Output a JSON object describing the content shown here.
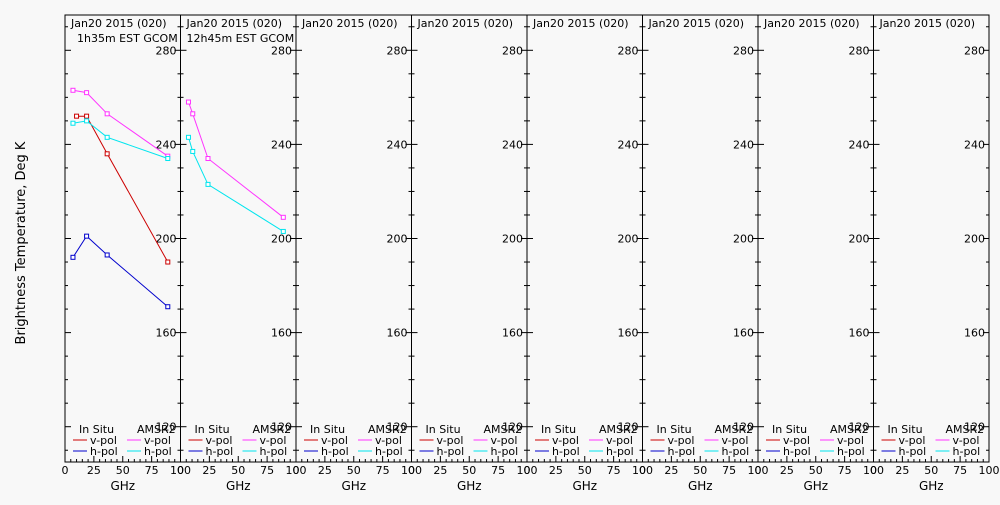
{
  "figure": {
    "ylabel": "Brightness Temperature, Deg K",
    "xlabel": "GHz"
  },
  "colors": {
    "insitu_v": "#cc0000",
    "insitu_h": "#0000cc",
    "amsr2_v": "#ff33ff",
    "amsr2_h": "#00e5ee",
    "background": "#f8f8f8",
    "axes": "#000000"
  },
  "legend": {
    "insitu_header": "In Situ",
    "amsr2_header": "AMSR2",
    "vpol": "v-pol",
    "hpol": "h-pol"
  },
  "chart_data": [
    {
      "type": "line",
      "title": "Jan20 2015 (020)",
      "subtitle": "1h35m EST GCOM",
      "xlabel": "GHz",
      "ylabel": "Brightness Temperature, Deg K",
      "xlim": [
        0,
        100
      ],
      "ylim": [
        105,
        295
      ],
      "xticks": [
        0,
        25,
        50,
        75,
        100
      ],
      "yticks": [
        120,
        160,
        200,
        240,
        280
      ],
      "legend_position": "bottom",
      "series": [
        {
          "name": "In Situ v-pol",
          "x": [
            10,
            18.7,
            36.5,
            89
          ],
          "y": [
            252,
            252,
            236,
            190
          ]
        },
        {
          "name": "In Situ h-pol",
          "x": [
            6.9,
            18.7,
            36.5,
            89
          ],
          "y": [
            192,
            201,
            193,
            171
          ]
        },
        {
          "name": "AMSR2 v-pol",
          "x": [
            6.9,
            18.7,
            36.5,
            89
          ],
          "y": [
            263,
            262,
            253,
            235
          ]
        },
        {
          "name": "AMSR2 h-pol",
          "x": [
            6.9,
            18.7,
            36.5,
            89
          ],
          "y": [
            249,
            250,
            243,
            234
          ]
        }
      ]
    },
    {
      "type": "line",
      "title": "Jan20 2015 (020)",
      "subtitle": "12h45m EST GCOM",
      "xlabel": "GHz",
      "xlim": [
        0,
        100
      ],
      "ylim": [
        105,
        295
      ],
      "xticks": [
        0,
        25,
        50,
        75,
        100
      ],
      "yticks": [
        120,
        160,
        200,
        240,
        280
      ],
      "legend_position": "bottom",
      "series": [
        {
          "name": "In Situ v-pol",
          "x": [],
          "y": []
        },
        {
          "name": "In Situ h-pol",
          "x": [],
          "y": []
        },
        {
          "name": "AMSR2 v-pol",
          "x": [
            6.9,
            10.6,
            23.8,
            89
          ],
          "y": [
            258,
            253,
            234,
            209
          ]
        },
        {
          "name": "AMSR2 h-pol",
          "x": [
            6.9,
            10.6,
            23.8,
            89
          ],
          "y": [
            243,
            237,
            223,
            203
          ]
        }
      ]
    },
    {
      "type": "line",
      "title": "Jan20 2015 (020)",
      "subtitle": "",
      "xlabel": "GHz",
      "xlim": [
        0,
        100
      ],
      "ylim": [
        105,
        295
      ],
      "xticks": [
        0,
        25,
        50,
        75,
        100
      ],
      "yticks": [
        120,
        160,
        200,
        240,
        280
      ],
      "legend_position": "bottom",
      "series": []
    },
    {
      "type": "line",
      "title": "Jan20 2015 (020)",
      "subtitle": "",
      "xlabel": "GHz",
      "xlim": [
        0,
        100
      ],
      "ylim": [
        105,
        295
      ],
      "xticks": [
        0,
        25,
        50,
        75,
        100
      ],
      "yticks": [
        120,
        160,
        200,
        240,
        280
      ],
      "legend_position": "bottom",
      "series": []
    },
    {
      "type": "line",
      "title": "Jan20 2015 (020)",
      "subtitle": "",
      "xlabel": "GHz",
      "xlim": [
        0,
        100
      ],
      "ylim": [
        105,
        295
      ],
      "xticks": [
        0,
        25,
        50,
        75,
        100
      ],
      "yticks": [
        120,
        160,
        200,
        240,
        280
      ],
      "legend_position": "bottom",
      "series": []
    },
    {
      "type": "line",
      "title": "Jan20 2015 (020)",
      "subtitle": "",
      "xlabel": "GHz",
      "xlim": [
        0,
        100
      ],
      "ylim": [
        105,
        295
      ],
      "xticks": [
        0,
        25,
        50,
        75,
        100
      ],
      "yticks": [
        120,
        160,
        200,
        240,
        280
      ],
      "legend_position": "bottom",
      "series": []
    },
    {
      "type": "line",
      "title": "Jan20 2015 (020)",
      "subtitle": "",
      "xlabel": "GHz",
      "xlim": [
        0,
        100
      ],
      "ylim": [
        105,
        295
      ],
      "xticks": [
        0,
        25,
        50,
        75,
        100
      ],
      "yticks": [
        120,
        160,
        200,
        240,
        280
      ],
      "legend_position": "bottom",
      "series": []
    },
    {
      "type": "line",
      "title": "Jan20 2015 (020)",
      "subtitle": "",
      "xlabel": "GHz",
      "xlim": [
        0,
        100
      ],
      "ylim": [
        105,
        295
      ],
      "xticks": [
        0,
        25,
        50,
        75,
        100
      ],
      "yticks": [
        120,
        160,
        200,
        240,
        280
      ],
      "legend_position": "bottom",
      "series": []
    }
  ]
}
